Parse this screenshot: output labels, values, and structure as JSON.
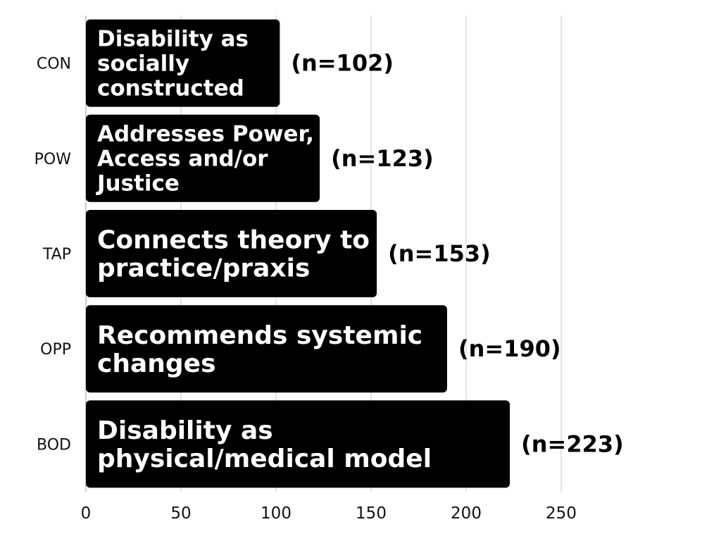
{
  "chart_data": {
    "type": "bar",
    "orientation": "horizontal",
    "categories": [
      "CON",
      "POW",
      "TAP",
      "OPP",
      "BOD"
    ],
    "values": [
      102,
      123,
      153,
      190,
      223
    ],
    "bar_labels": [
      [
        "Disability as",
        "socially",
        "constructed"
      ],
      [
        "Addresses Power,",
        "Access and/or",
        "Justice"
      ],
      [
        "Connects theory to",
        "practice/praxis"
      ],
      [
        "Recommends systemic",
        "changes"
      ],
      [
        "Disability as",
        "physical/medical model"
      ]
    ],
    "count_labels": [
      "(n=102)",
      "(n=123)",
      "(n=153)",
      "(n=190)",
      "(n=223)"
    ],
    "xticks": [
      "0",
      "50",
      "100",
      "150",
      "200",
      "250"
    ],
    "xtick_values": [
      0,
      50,
      100,
      150,
      200,
      250
    ],
    "xlim": [
      0,
      250
    ],
    "grid": "vertical",
    "bar_color": "#000000",
    "title": "",
    "xlabel": "",
    "ylabel": ""
  }
}
